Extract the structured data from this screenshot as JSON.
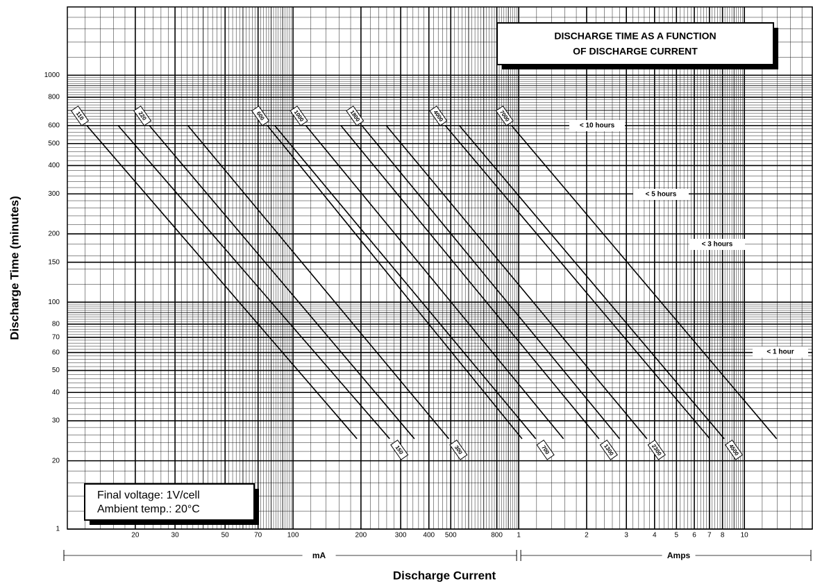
{
  "chart_data": {
    "type": "line",
    "title": [
      "DISCHARGE TIME AS A FUNCTION",
      "OF DISCHARGE CURRENT"
    ],
    "x_label": "Discharge Current",
    "y_label": "Discharge Time (minutes)",
    "x_units": [
      "mA",
      "Amps"
    ],
    "notes": [
      "Final voltage: 1V/cell",
      "Ambient temp.: 20°C"
    ],
    "annotations": [
      "< 10 hours",
      "< 5 hours",
      "< 3 hours",
      "< 1 hour"
    ],
    "xscale": "log",
    "yscale": "log",
    "grid": true,
    "xlim": [
      10,
      20000
    ],
    "ylim": [
      10,
      2000
    ],
    "xticks": [
      20,
      30,
      50,
      70,
      100,
      200,
      300,
      400,
      500,
      800,
      {
        "value": 1000,
        "label": "1"
      },
      {
        "value": 2000,
        "label": "2"
      },
      {
        "value": 3000,
        "label": "3"
      },
      {
        "value": 4000,
        "label": "4"
      },
      {
        "value": 5000,
        "label": "5"
      },
      {
        "value": 6000,
        "label": "6"
      },
      {
        "value": 7000,
        "label": "7"
      },
      {
        "value": 8000,
        "label": "8"
      },
      {
        "value": 10000,
        "label": "10"
      }
    ],
    "yticks": [
      {
        "value": 10,
        "label": "1"
      },
      20,
      30,
      40,
      50,
      60,
      70,
      80,
      100,
      150,
      200,
      300,
      400,
      500,
      600,
      800,
      1000
    ],
    "series": [
      {
        "name": "110",
        "color": "#000000",
        "x": [
          12.2,
          192
        ],
        "values": [
          600,
          25
        ]
      },
      {
        "name": "150",
        "color": "#000000",
        "x": [
          16.8,
          268
        ],
        "values": [
          600,
          25
        ]
      },
      {
        "name": "220",
        "color": "#000000",
        "x": [
          23.1,
          345
        ],
        "values": [
          600,
          25
        ]
      },
      {
        "name": "300",
        "color": "#000000",
        "x": [
          34.2,
          490
        ],
        "values": [
          600,
          25
        ]
      },
      {
        "name": "600",
        "color": "#000000",
        "x": [
          77,
          1035
        ],
        "values": [
          600,
          25
        ]
      },
      {
        "name": "700",
        "color": "#000000",
        "x": [
          83,
          1190
        ],
        "values": [
          600,
          25
        ]
      },
      {
        "name": "1000",
        "color": "#000000",
        "x": [
          114,
          1580
        ],
        "values": [
          600,
          25
        ]
      },
      {
        "name": "1300",
        "color": "#000000",
        "x": [
          163,
          2270
        ],
        "values": [
          600,
          25
        ]
      },
      {
        "name": "1800",
        "color": "#000000",
        "x": [
          202,
          2800
        ],
        "values": [
          600,
          25
        ]
      },
      {
        "name": "2300",
        "color": "#000000",
        "x": [
          259,
          3700
        ],
        "values": [
          600,
          25
        ]
      },
      {
        "name": "4000",
        "color": "#000000",
        "x": [
          473,
          7030
        ],
        "values": [
          600,
          25
        ]
      },
      {
        "name": "4500",
        "color": "#000000",
        "x": [
          546,
          8140
        ],
        "values": [
          600,
          25
        ]
      },
      {
        "name": "7000",
        "color": "#000000",
        "x": [
          930,
          13900
        ],
        "values": [
          600,
          25
        ]
      }
    ]
  }
}
